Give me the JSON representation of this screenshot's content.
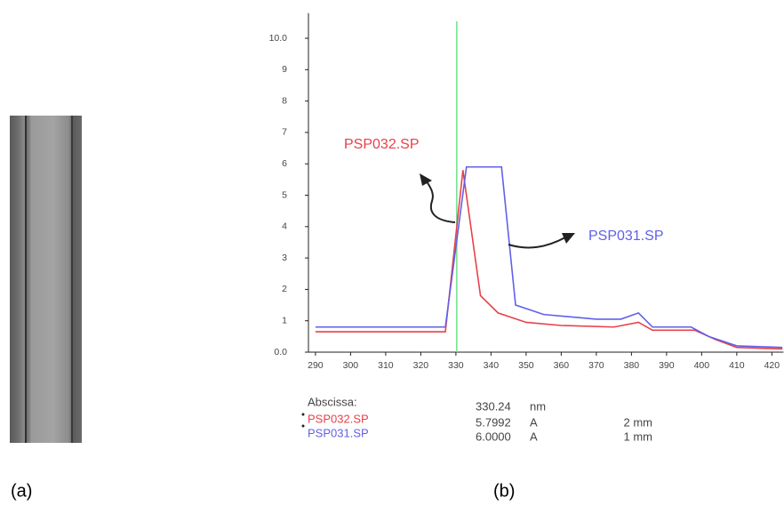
{
  "chart_data": {
    "type": "line",
    "series": [
      {
        "name": "PSP032.SP",
        "color": "#e8414a",
        "x": [
          290,
          327,
          332,
          337,
          342,
          350,
          360,
          375,
          382,
          386,
          398,
          404,
          410,
          423
        ],
        "values": [
          0.65,
          0.65,
          5.8,
          1.8,
          1.25,
          0.95,
          0.85,
          0.8,
          0.95,
          0.7,
          0.7,
          0.4,
          0.15,
          0.1
        ]
      },
      {
        "name": "PSP031.SP",
        "color": "#6060e8",
        "x": [
          290,
          327,
          333,
          343,
          347,
          355,
          370,
          377,
          382,
          386,
          397,
          402,
          410,
          423
        ],
        "values": [
          0.8,
          0.8,
          5.9,
          5.9,
          1.5,
          1.2,
          1.05,
          1.05,
          1.25,
          0.8,
          0.8,
          0.5,
          0.2,
          0.15
        ]
      }
    ],
    "xlim": [
      288,
      423.3
    ],
    "ylim": [
      0,
      10.8
    ],
    "xticks": [
      290,
      300,
      310,
      320,
      330,
      340,
      350,
      360,
      370,
      380,
      390,
      400,
      410,
      420
    ],
    "yticks": [
      {
        "value": 0,
        "label": "0.0"
      },
      1,
      2,
      3,
      4,
      5,
      6,
      7,
      8,
      9,
      {
        "value": 10,
        "label": "10.0"
      }
    ],
    "cursor_x": 330.24,
    "cursor_color": "#6ee08a",
    "readout": {
      "abscissa_label": "Abscissa:",
      "abscissa_unit": "nm",
      "rows": [
        {
          "value": "5.7992",
          "unit": "A",
          "thickness": "2 mm"
        },
        {
          "value": "6.0000",
          "unit": "A",
          "thickness": "1 mm"
        }
      ]
    },
    "panel_labels": [
      "(a)",
      "(b)"
    ]
  }
}
